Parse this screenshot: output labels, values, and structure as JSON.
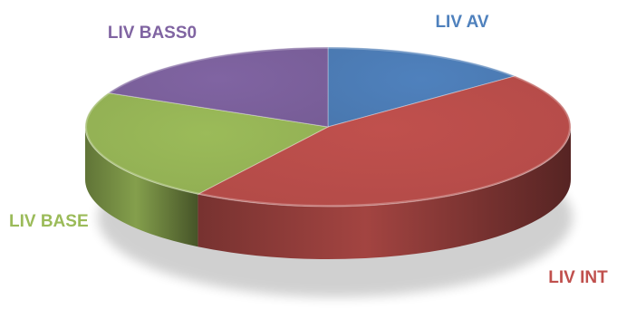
{
  "chart_data": {
    "type": "pie",
    "style": "3d",
    "title": "",
    "legend": "none",
    "categories": [
      "LIV AV",
      "LIV INT",
      "LIV BASE",
      "LIV BASS0"
    ],
    "values": [
      14,
      45,
      23,
      18
    ],
    "colors": [
      "#4F81BD",
      "#C0504D",
      "#9BBB59",
      "#8064A2"
    ]
  }
}
